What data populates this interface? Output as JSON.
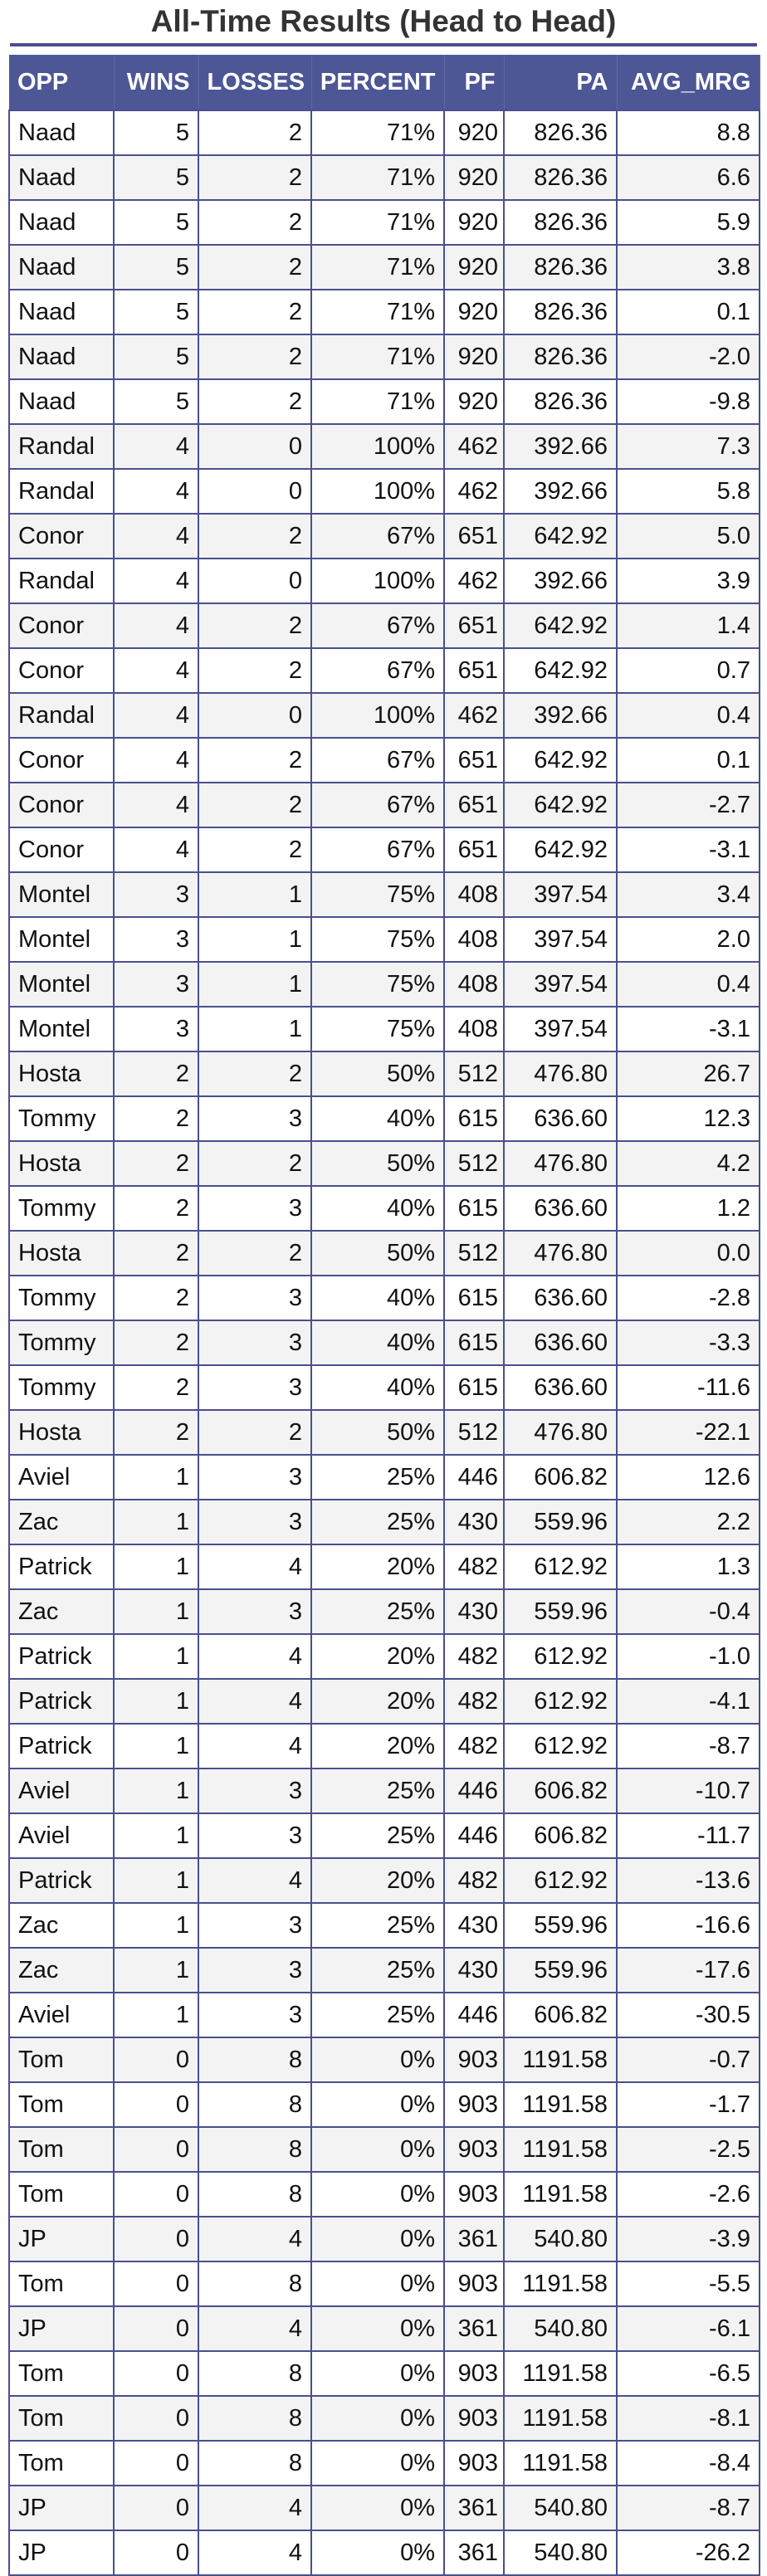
{
  "title": "All-Time Results (Head to Head)",
  "columns": [
    "OPP",
    "WINS",
    "LOSSES",
    "PERCENT",
    "PF",
    "PA",
    "AVG_MRG"
  ],
  "rows": [
    [
      "Naad",
      "5",
      "2",
      "71%",
      "920",
      "826.36",
      "8.8"
    ],
    [
      "Naad",
      "5",
      "2",
      "71%",
      "920",
      "826.36",
      "6.6"
    ],
    [
      "Naad",
      "5",
      "2",
      "71%",
      "920",
      "826.36",
      "5.9"
    ],
    [
      "Naad",
      "5",
      "2",
      "71%",
      "920",
      "826.36",
      "3.8"
    ],
    [
      "Naad",
      "5",
      "2",
      "71%",
      "920",
      "826.36",
      "0.1"
    ],
    [
      "Naad",
      "5",
      "2",
      "71%",
      "920",
      "826.36",
      "-2.0"
    ],
    [
      "Naad",
      "5",
      "2",
      "71%",
      "920",
      "826.36",
      "-9.8"
    ],
    [
      "Randal",
      "4",
      "0",
      "100%",
      "462",
      "392.66",
      "7.3"
    ],
    [
      "Randal",
      "4",
      "0",
      "100%",
      "462",
      "392.66",
      "5.8"
    ],
    [
      "Conor",
      "4",
      "2",
      "67%",
      "651",
      "642.92",
      "5.0"
    ],
    [
      "Randal",
      "4",
      "0",
      "100%",
      "462",
      "392.66",
      "3.9"
    ],
    [
      "Conor",
      "4",
      "2",
      "67%",
      "651",
      "642.92",
      "1.4"
    ],
    [
      "Conor",
      "4",
      "2",
      "67%",
      "651",
      "642.92",
      "0.7"
    ],
    [
      "Randal",
      "4",
      "0",
      "100%",
      "462",
      "392.66",
      "0.4"
    ],
    [
      "Conor",
      "4",
      "2",
      "67%",
      "651",
      "642.92",
      "0.1"
    ],
    [
      "Conor",
      "4",
      "2",
      "67%",
      "651",
      "642.92",
      "-2.7"
    ],
    [
      "Conor",
      "4",
      "2",
      "67%",
      "651",
      "642.92",
      "-3.1"
    ],
    [
      "Montel",
      "3",
      "1",
      "75%",
      "408",
      "397.54",
      "3.4"
    ],
    [
      "Montel",
      "3",
      "1",
      "75%",
      "408",
      "397.54",
      "2.0"
    ],
    [
      "Montel",
      "3",
      "1",
      "75%",
      "408",
      "397.54",
      "0.4"
    ],
    [
      "Montel",
      "3",
      "1",
      "75%",
      "408",
      "397.54",
      "-3.1"
    ],
    [
      "Hosta",
      "2",
      "2",
      "50%",
      "512",
      "476.80",
      "26.7"
    ],
    [
      "Tommy",
      "2",
      "3",
      "40%",
      "615",
      "636.60",
      "12.3"
    ],
    [
      "Hosta",
      "2",
      "2",
      "50%",
      "512",
      "476.80",
      "4.2"
    ],
    [
      "Tommy",
      "2",
      "3",
      "40%",
      "615",
      "636.60",
      "1.2"
    ],
    [
      "Hosta",
      "2",
      "2",
      "50%",
      "512",
      "476.80",
      "0.0"
    ],
    [
      "Tommy",
      "2",
      "3",
      "40%",
      "615",
      "636.60",
      "-2.8"
    ],
    [
      "Tommy",
      "2",
      "3",
      "40%",
      "615",
      "636.60",
      "-3.3"
    ],
    [
      "Tommy",
      "2",
      "3",
      "40%",
      "615",
      "636.60",
      "-11.6"
    ],
    [
      "Hosta",
      "2",
      "2",
      "50%",
      "512",
      "476.80",
      "-22.1"
    ],
    [
      "Aviel",
      "1",
      "3",
      "25%",
      "446",
      "606.82",
      "12.6"
    ],
    [
      "Zac",
      "1",
      "3",
      "25%",
      "430",
      "559.96",
      "2.2"
    ],
    [
      "Patrick",
      "1",
      "4",
      "20%",
      "482",
      "612.92",
      "1.3"
    ],
    [
      "Zac",
      "1",
      "3",
      "25%",
      "430",
      "559.96",
      "-0.4"
    ],
    [
      "Patrick",
      "1",
      "4",
      "20%",
      "482",
      "612.92",
      "-1.0"
    ],
    [
      "Patrick",
      "1",
      "4",
      "20%",
      "482",
      "612.92",
      "-4.1"
    ],
    [
      "Patrick",
      "1",
      "4",
      "20%",
      "482",
      "612.92",
      "-8.7"
    ],
    [
      "Aviel",
      "1",
      "3",
      "25%",
      "446",
      "606.82",
      "-10.7"
    ],
    [
      "Aviel",
      "1",
      "3",
      "25%",
      "446",
      "606.82",
      "-11.7"
    ],
    [
      "Patrick",
      "1",
      "4",
      "20%",
      "482",
      "612.92",
      "-13.6"
    ],
    [
      "Zac",
      "1",
      "3",
      "25%",
      "430",
      "559.96",
      "-16.6"
    ],
    [
      "Zac",
      "1",
      "3",
      "25%",
      "430",
      "559.96",
      "-17.6"
    ],
    [
      "Aviel",
      "1",
      "3",
      "25%",
      "446",
      "606.82",
      "-30.5"
    ],
    [
      "Tom",
      "0",
      "8",
      "0%",
      "903",
      "1191.58",
      "-0.7"
    ],
    [
      "Tom",
      "0",
      "8",
      "0%",
      "903",
      "1191.58",
      "-1.7"
    ],
    [
      "Tom",
      "0",
      "8",
      "0%",
      "903",
      "1191.58",
      "-2.5"
    ],
    [
      "Tom",
      "0",
      "8",
      "0%",
      "903",
      "1191.58",
      "-2.6"
    ],
    [
      "JP",
      "0",
      "4",
      "0%",
      "361",
      "540.80",
      "-3.9"
    ],
    [
      "Tom",
      "0",
      "8",
      "0%",
      "903",
      "1191.58",
      "-5.5"
    ],
    [
      "JP",
      "0",
      "4",
      "0%",
      "361",
      "540.80",
      "-6.1"
    ],
    [
      "Tom",
      "0",
      "8",
      "0%",
      "903",
      "1191.58",
      "-6.5"
    ],
    [
      "Tom",
      "0",
      "8",
      "0%",
      "903",
      "1191.58",
      "-8.1"
    ],
    [
      "Tom",
      "0",
      "8",
      "0%",
      "903",
      "1191.58",
      "-8.4"
    ],
    [
      "JP",
      "0",
      "4",
      "0%",
      "361",
      "540.80",
      "-8.7"
    ],
    [
      "JP",
      "0",
      "4",
      "0%",
      "361",
      "540.80",
      "-26.2"
    ]
  ]
}
